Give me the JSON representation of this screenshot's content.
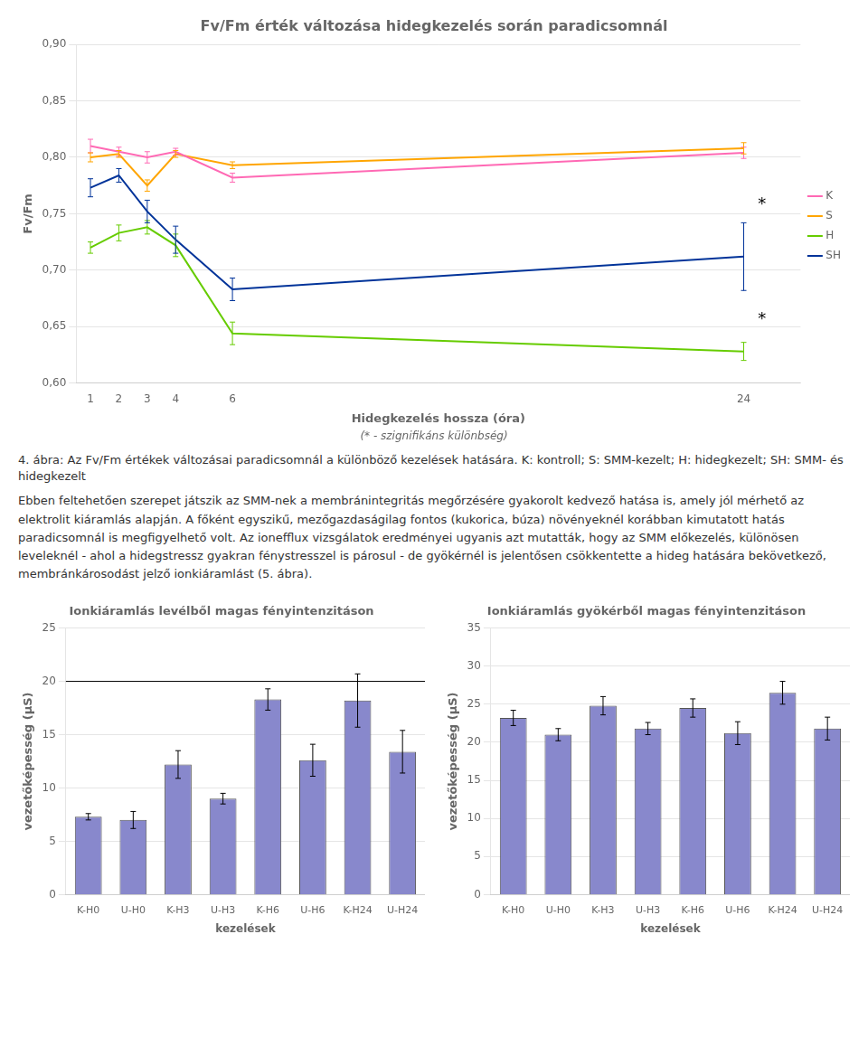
{
  "chart_data": [
    {
      "type": "line",
      "title": "Fv/Fm érték változása hidegkezelés során paradicsomnál",
      "subtitle": "(* - szignifikáns különbség)",
      "xlabel": "Hidegkezelés hossza (óra)",
      "ylabel": "Fv/Fm",
      "x": [
        1,
        2,
        3,
        4,
        6,
        24
      ],
      "xlim": [
        0.5,
        26
      ],
      "xticks": [
        1,
        2,
        3,
        4,
        6,
        24
      ],
      "ylim": [
        0.6,
        0.9
      ],
      "yticks": [
        {
          "value": 0.6,
          "label": "0,60"
        },
        {
          "value": 0.65,
          "label": "0,65"
        },
        {
          "value": 0.7,
          "label": "0,70"
        },
        {
          "value": 0.75,
          "label": "0,75"
        },
        {
          "value": 0.8,
          "label": "0,80"
        },
        {
          "value": 0.85,
          "label": "0,85"
        },
        {
          "value": 0.9,
          "label": "0,90"
        }
      ],
      "grid": true,
      "legend": "right",
      "series": [
        {
          "name": "K",
          "color": "#FF69B4",
          "values": [
            0.81,
            0.805,
            0.8,
            0.805,
            0.782,
            0.804
          ],
          "yerr": [
            0.006,
            0.004,
            0.005,
            0.003,
            0.004,
            0.005
          ]
        },
        {
          "name": "S",
          "color": "#FFA500",
          "values": [
            0.8,
            0.803,
            0.775,
            0.803,
            0.793,
            0.808
          ],
          "yerr": [
            0.004,
            0.003,
            0.005,
            0.003,
            0.003,
            0.005
          ]
        },
        {
          "name": "H",
          "color": "#66CC00",
          "values": [
            0.72,
            0.733,
            0.738,
            0.722,
            0.644,
            0.628
          ],
          "yerr": [
            0.005,
            0.007,
            0.006,
            0.01,
            0.01,
            0.008
          ]
        },
        {
          "name": "SH",
          "color": "#003399",
          "values": [
            0.773,
            0.784,
            0.752,
            0.727,
            0.683,
            0.712
          ],
          "yerr": [
            0.008,
            0.006,
            0.01,
            0.012,
            0.01,
            0.03
          ]
        }
      ],
      "annotations": [
        {
          "text": "*",
          "x": 24.5,
          "y": 0.758
        },
        {
          "text": "*",
          "x": 24.5,
          "y": 0.656
        }
      ]
    },
    {
      "type": "bar",
      "title": "Ionkiáramlás levélből magas fényintenzitáson",
      "xlabel": "kezelések",
      "ylabel": "vezetőképesség (µS)",
      "categories": [
        "K-H0",
        "U-H0",
        "K-H3",
        "U-H3",
        "K-H6",
        "U-H6",
        "K-H24",
        "U-H24"
      ],
      "values": [
        7.3,
        7.0,
        12.2,
        9.0,
        18.3,
        12.6,
        18.2,
        13.4
      ],
      "yerr": [
        0.3,
        0.8,
        1.3,
        0.5,
        1.0,
        1.5,
        2.5,
        2.0
      ],
      "color": "#8888CC",
      "ylim": [
        0,
        25
      ],
      "yticks": [
        0,
        5,
        10,
        15,
        20,
        25
      ],
      "grid": true,
      "hline": 20
    },
    {
      "type": "bar",
      "title": "Ionkiáramlás gyökérből magas fényintenzitáson",
      "xlabel": "kezelések",
      "ylabel": "vezetőképesség (µS)",
      "categories": [
        "K-H0",
        "U-H0",
        "K-H3",
        "U-H3",
        "K-H6",
        "U-H6",
        "K-H24",
        "U-H24"
      ],
      "values": [
        23.2,
        21.0,
        24.8,
        21.8,
        24.5,
        21.2,
        26.5,
        21.8
      ],
      "yerr": [
        1.0,
        0.8,
        1.2,
        0.8,
        1.2,
        1.5,
        1.5,
        1.5
      ],
      "color": "#8888CC",
      "ylim": [
        0,
        35
      ],
      "yticks": [
        0,
        5,
        10,
        15,
        20,
        25,
        30,
        35
      ],
      "grid": true
    }
  ],
  "caption": "4. ábra: Az Fv/Fm értékek változásai paradicsomnál a különböző kezelések hatására. K: kontroll; S: SMM-kezelt; H: hidegkezelt; SH: SMM- és hidegkezelt",
  "paragraph": "Ebben feltehetően szerepet játszik az SMM-nek a membránintegritás megőrzésére gyakorolt kedvező hatása is, amely jól mérhető az elektrolit kiáramlás alapján. A főként egyszikű, mezőgazdaságilag fontos (kukorica, búza) növényeknél korábban kimutatott hatás paradicsomnál is megfigyelhető volt. Az ionefflux vizsgálatok eredményei ugyanis azt mutatták, hogy az SMM előkezelés, különösen leveleknél - ahol a hidegstressz gyakran fénystresszel is párosul - de gyökérnél is jelentősen csökkentette a hideg hatására bekövetkező, membránkárosodást jelző ionkiáramlást (5. ábra)."
}
